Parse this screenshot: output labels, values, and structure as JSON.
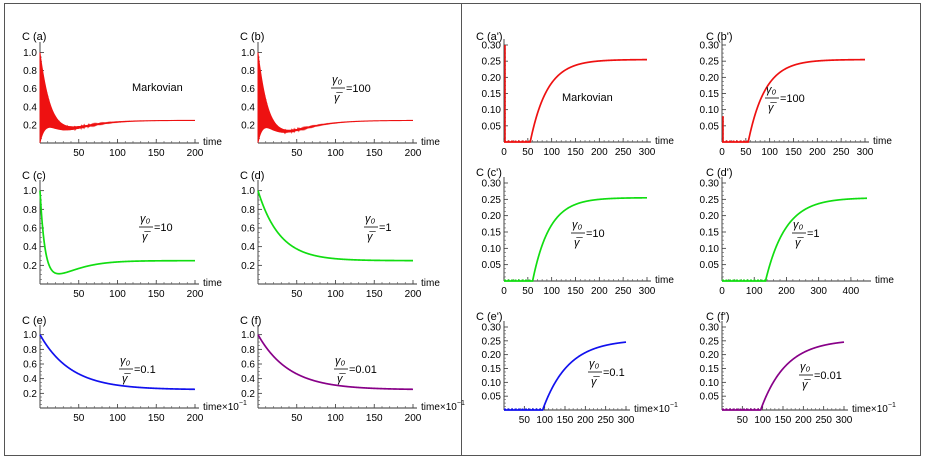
{
  "chart_data": [
    {
      "type": "line",
      "id": "a",
      "label": "C  (a)",
      "annotation": "Markovian",
      "gamma": "",
      "xlabel": "time",
      "xmultiplier": "",
      "xlim": [
        0,
        200
      ],
      "ylim": [
        0,
        1.05
      ],
      "xticks": [
        50,
        100,
        150,
        200
      ],
      "yticks": [
        0.2,
        0.4,
        0.6,
        0.8,
        1.0
      ],
      "ytick_labels": [
        "0.2",
        "0.4",
        "0.6",
        "0.8",
        "1.0"
      ],
      "color": "#ee1111",
      "curve": {
        "kind": "osc",
        "tau": 12,
        "cmin": 0.13,
        "tmin": 22,
        "cinf": 0.25,
        "rise": 45,
        "freq": 0.9
      },
      "zero_until": 0,
      "stub_to": 0
    },
    {
      "type": "line",
      "id": "b",
      "label": "C  (b)",
      "annotation": "",
      "gamma": "100",
      "xlabel": "time",
      "xmultiplier": "",
      "xlim": [
        0,
        200
      ],
      "ylim": [
        0,
        1.05
      ],
      "xticks": [
        50,
        100,
        150,
        200
      ],
      "yticks": [
        0.2,
        0.4,
        0.6,
        0.8,
        1.0
      ],
      "ytick_labels": [
        "0.2",
        "0.4",
        "0.6",
        "0.8",
        "1.0"
      ],
      "color": "#ee1111",
      "curve": {
        "kind": "osc",
        "tau": 11,
        "cmin": 0.1,
        "tmin": 24,
        "cinf": 0.25,
        "rise": 45,
        "freq": 0.9
      },
      "zero_until": 0,
      "stub_to": 0
    },
    {
      "type": "line",
      "id": "c",
      "label": "C  (c)",
      "annotation": "",
      "gamma": "10",
      "xlabel": "time",
      "xmultiplier": "",
      "xlim": [
        0,
        200
      ],
      "ylim": [
        0,
        1.05
      ],
      "xticks": [
        50,
        100,
        150,
        200
      ],
      "yticks": [
        0.2,
        0.4,
        0.6,
        0.8,
        1.0
      ],
      "ytick_labels": [
        "0.2",
        "0.4",
        "0.6",
        "0.8",
        "1.0"
      ],
      "color": "#11dd11",
      "curve": {
        "kind": "dip",
        "tau": 5,
        "cmin": 0.1,
        "tmin": 20,
        "cinf": 0.25,
        "rise": 30
      },
      "zero_until": 0,
      "stub_to": 0
    },
    {
      "type": "line",
      "id": "d",
      "label": "C  (d)",
      "annotation": "",
      "gamma": "1",
      "xlabel": "time",
      "xmultiplier": "",
      "xlim": [
        0,
        200
      ],
      "ylim": [
        0,
        1.05
      ],
      "xticks": [
        50,
        100,
        150,
        200
      ],
      "yticks": [
        0.2,
        0.4,
        0.6,
        0.8,
        1.0
      ],
      "ytick_labels": [
        "0.2",
        "0.4",
        "0.6",
        "0.8",
        "1.0"
      ],
      "color": "#11dd11",
      "curve": {
        "kind": "decay",
        "tau": 28,
        "cinf": 0.25
      },
      "zero_until": 0,
      "stub_to": 0
    },
    {
      "type": "line",
      "id": "e",
      "label": "C  (e)",
      "annotation": "",
      "gamma": "0.1",
      "xlabel": "time×10",
      "xmultiplier": "−1",
      "xlim": [
        0,
        200
      ],
      "ylim": [
        0,
        1.05
      ],
      "xticks": [
        50,
        100,
        150,
        200
      ],
      "yticks": [
        0.2,
        0.4,
        0.6,
        0.8,
        1.0
      ],
      "ytick_labels": [
        "0.2",
        "0.4",
        "0.6",
        "0.8",
        "1.0"
      ],
      "color": "#1111ee",
      "curve": {
        "kind": "decay",
        "tau": 40,
        "cinf": 0.25
      },
      "zero_until": 0,
      "stub_to": 0
    },
    {
      "type": "line",
      "id": "f",
      "label": "C  (f)",
      "annotation": "",
      "gamma": "0.01",
      "xlabel": "time×10",
      "xmultiplier": "−1",
      "xlim": [
        0,
        200
      ],
      "ylim": [
        0,
        1.05
      ],
      "xticks": [
        50,
        100,
        150,
        200
      ],
      "yticks": [
        0.2,
        0.4,
        0.6,
        0.8,
        1.0
      ],
      "ytick_labels": [
        "0.2",
        "0.4",
        "0.6",
        "0.8",
        "1.0"
      ],
      "color": "#880088",
      "curve": {
        "kind": "decay",
        "tau": 40,
        "cinf": 0.25
      },
      "zero_until": 0,
      "stub_to": 0
    },
    {
      "type": "line",
      "id": "a'",
      "label": "C  (a')",
      "annotation": "Markovian",
      "gamma": "",
      "xlabel": "time",
      "xmultiplier": "",
      "xlim": [
        0,
        300
      ],
      "ylim": [
        0,
        0.3
      ],
      "xticks": [
        0,
        50,
        100,
        150,
        200,
        250,
        300
      ],
      "yticks": [
        0.05,
        0.1,
        0.15,
        0.2,
        0.25,
        0.3
      ],
      "ytick_labels": [
        "0.05",
        "0.10",
        "0.15",
        "0.20",
        "0.25",
        "0.30"
      ],
      "color": "#ee1111",
      "curve": {
        "kind": "rise",
        "t0": 55,
        "k": 0.028,
        "cinf": 0.255
      },
      "zero_until": 55,
      "stub_to": 0.3
    },
    {
      "type": "line",
      "id": "b'",
      "label": "C  (b')",
      "annotation": "",
      "gamma": "100",
      "xlabel": "time",
      "xmultiplier": "",
      "xlim": [
        0,
        300
      ],
      "ylim": [
        0,
        0.3
      ],
      "xticks": [
        0,
        50,
        100,
        150,
        200,
        250,
        300
      ],
      "yticks": [
        0.05,
        0.1,
        0.15,
        0.2,
        0.25,
        0.3
      ],
      "ytick_labels": [
        "0.05",
        "0.10",
        "0.15",
        "0.20",
        "0.25",
        "0.30"
      ],
      "color": "#ee1111",
      "curve": {
        "kind": "rise",
        "t0": 55,
        "k": 0.028,
        "cinf": 0.255
      },
      "zero_until": 55,
      "stub_to": 0.08
    },
    {
      "type": "line",
      "id": "c'",
      "label": "C  (c')",
      "annotation": "",
      "gamma": "10",
      "xlabel": "time",
      "xmultiplier": "",
      "xlim": [
        0,
        300
      ],
      "ylim": [
        0,
        0.3
      ],
      "xticks": [
        0,
        50,
        100,
        150,
        200,
        250,
        300
      ],
      "yticks": [
        0.05,
        0.1,
        0.15,
        0.2,
        0.25,
        0.3
      ],
      "ytick_labels": [
        "0.05",
        "0.10",
        "0.15",
        "0.20",
        "0.25",
        "0.30"
      ],
      "color": "#11dd11",
      "curve": {
        "kind": "rise",
        "t0": 60,
        "k": 0.028,
        "cinf": 0.255
      },
      "zero_until": 60,
      "stub_to": 0
    },
    {
      "type": "line",
      "id": "d'",
      "label": "C  (d')",
      "annotation": "",
      "gamma": "1",
      "xlabel": "time",
      "xmultiplier": "",
      "xlim": [
        0,
        450
      ],
      "ylim": [
        0,
        0.3
      ],
      "xticks": [
        0,
        100,
        200,
        300,
        400
      ],
      "yticks": [
        0.05,
        0.1,
        0.15,
        0.2,
        0.25,
        0.3
      ],
      "ytick_labels": [
        "0.05",
        "0.10",
        "0.15",
        "0.20",
        "0.25",
        "0.30"
      ],
      "color": "#11dd11",
      "curve": {
        "kind": "rise",
        "t0": 135,
        "k": 0.016,
        "cinf": 0.255
      },
      "zero_until": 135,
      "stub_to": 0
    },
    {
      "type": "line",
      "id": "e'",
      "label": "C  (e')",
      "annotation": "",
      "gamma": "0.1",
      "xlabel": "time×10",
      "xmultiplier": "−1",
      "xlim": [
        0,
        300
      ],
      "ylim": [
        0,
        0.3
      ],
      "xticks": [
        50,
        100,
        150,
        200,
        250,
        300
      ],
      "yticks": [
        0.05,
        0.1,
        0.15,
        0.2,
        0.25,
        0.3
      ],
      "ytick_labels": [
        "0.05",
        "0.10",
        "0.15",
        "0.20",
        "0.25",
        "0.30"
      ],
      "color": "#1111ee",
      "curve": {
        "kind": "rise",
        "t0": 95,
        "k": 0.016,
        "cinf": 0.255
      },
      "zero_until": 95,
      "stub_to": 0
    },
    {
      "type": "line",
      "id": "f'",
      "label": "C  (f')",
      "annotation": "",
      "gamma": "0.01",
      "xlabel": "time×10",
      "xmultiplier": "−1",
      "xlim": [
        0,
        300
      ],
      "ylim": [
        0,
        0.3
      ],
      "xticks": [
        50,
        100,
        150,
        200,
        250,
        300
      ],
      "yticks": [
        0.05,
        0.1,
        0.15,
        0.2,
        0.25,
        0.3
      ],
      "ytick_labels": [
        "0.05",
        "0.10",
        "0.15",
        "0.20",
        "0.25",
        "0.30"
      ],
      "color": "#880088",
      "curve": {
        "kind": "rise",
        "t0": 95,
        "k": 0.016,
        "cinf": 0.255
      },
      "zero_until": 95,
      "stub_to": 0
    }
  ],
  "gamma_symbol": {
    "numerator": "γ₀",
    "denominator": "γ̅",
    "equals": "="
  }
}
